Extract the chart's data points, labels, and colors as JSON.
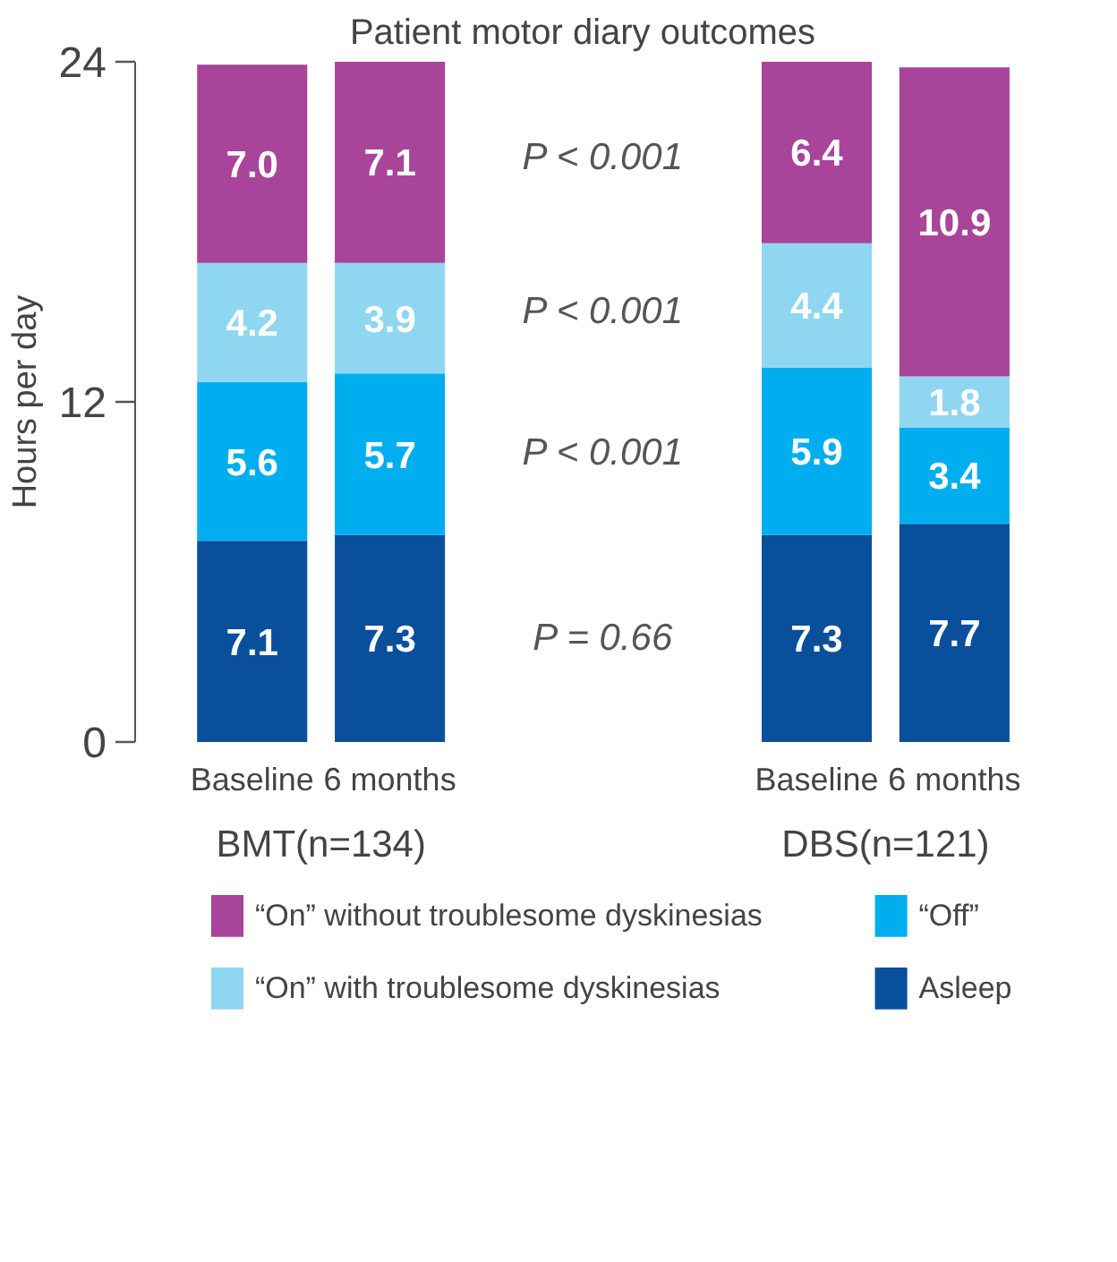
{
  "chart_data": {
    "type": "bar",
    "stacked": true,
    "title": "Patient motor diary outcomes",
    "ylabel": "Hours per day",
    "categories": [
      "Baseline",
      "6 months",
      "Baseline",
      "6 months"
    ],
    "series": [
      {
        "name": "Asleep",
        "color": "#0a4f9c",
        "values": [
          7.1,
          7.3,
          7.3,
          7.7
        ],
        "value_labels": [
          "7.1",
          "7.3",
          "7.3",
          "7.7"
        ]
      },
      {
        "name": "“Off”",
        "color": "#00aeef",
        "values": [
          5.6,
          5.7,
          5.9,
          3.4
        ],
        "value_labels": [
          "5.6",
          "5.7",
          "5.9",
          "3.4"
        ]
      },
      {
        "name": "“On” with troublesome dyskinesias",
        "color": "#8fd6f0",
        "values": [
          4.2,
          3.9,
          4.4,
          1.8
        ],
        "value_labels": [
          "4.2",
          "3.9",
          "4.4",
          "1.8"
        ]
      },
      {
        "name": "“On” without troublesome dyskinesias",
        "color": "#a8449a",
        "values": [
          7.0,
          7.1,
          6.4,
          10.9
        ],
        "value_labels": [
          "7.0",
          "7.1",
          "6.4",
          "10.9"
        ]
      }
    ],
    "ylim": [
      0,
      24
    ],
    "yticks": [
      0,
      12,
      24
    ],
    "annotations": [
      "BMT(n=134)",
      "DBS(n=121)",
      "P < 0.001",
      "P < 0.001",
      "P < 0.001",
      "P = 0.66"
    ],
    "grid": false,
    "legend": "bottom"
  }
}
